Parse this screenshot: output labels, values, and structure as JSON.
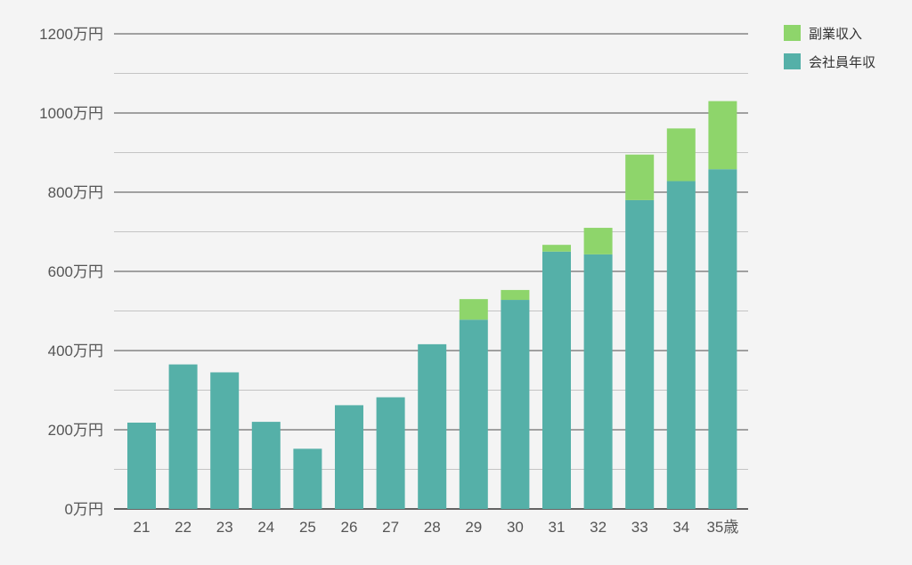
{
  "chart_data": {
    "type": "bar",
    "stacked": true,
    "categories": [
      "21",
      "22",
      "23",
      "24",
      "25",
      "26",
      "27",
      "28",
      "29",
      "30",
      "31",
      "32",
      "33",
      "34",
      "35歳"
    ],
    "series": [
      {
        "name": "会社員年収",
        "color": "#55b0a8",
        "values": [
          218,
          365,
          345,
          220,
          152,
          262,
          282,
          416,
          478,
          528,
          650,
          643,
          780,
          828,
          858
        ]
      },
      {
        "name": "副業収入",
        "color": "#8ed56b",
        "values": [
          0,
          0,
          0,
          0,
          0,
          0,
          0,
          0,
          52,
          25,
          17,
          67,
          115,
          133,
          172
        ]
      }
    ],
    "ylim": [
      0,
      1200
    ],
    "y_major_ticks": [
      0,
      200,
      400,
      600,
      800,
      1000,
      1200
    ],
    "y_minor_ticks": [
      100,
      300,
      500,
      700,
      900,
      1100
    ],
    "y_tick_labels": [
      "0万円",
      "200万円",
      "400万円",
      "600万円",
      "800万円",
      "1000万円",
      "1200万円"
    ],
    "legend": {
      "position": "top-right",
      "entries": [
        {
          "name": "副業収入",
          "color": "#8ed56b"
        },
        {
          "name": "会社員年収",
          "color": "#55b0a8"
        }
      ]
    },
    "grid": true
  }
}
